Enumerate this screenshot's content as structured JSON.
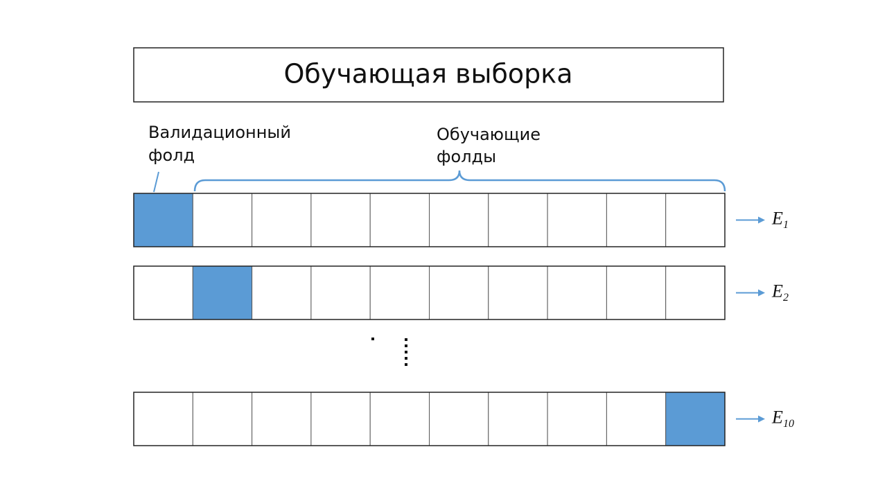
{
  "title": "Обучающая выборка",
  "validation_label": [
    "Валидационный",
    "фолд"
  ],
  "training_label": [
    "Обучающие",
    "фолды"
  ],
  "rows": [
    {
      "validation_fold": 0,
      "error": "E",
      "subscript": "1"
    },
    {
      "validation_fold": 1,
      "error": "E",
      "subscript": "2"
    },
    {
      "validation_fold": 9,
      "error": "E",
      "subscript": "10"
    }
  ]
}
